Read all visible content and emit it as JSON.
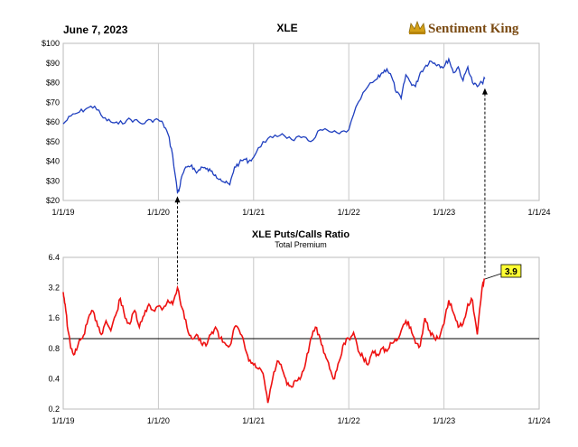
{
  "date_label": "June 7, 2023",
  "brand": {
    "name": "Sentiment King",
    "icon": "crown-icon",
    "color": "#7a4a12",
    "icon_color": "#d4a017"
  },
  "colors": {
    "price_line": "#1f3fbf",
    "ratio_line": "#ee1111",
    "callout_bg": "#ffff33",
    "reference_line": "#000000",
    "grid": "#c8c8c8"
  },
  "chart_data": [
    {
      "type": "line",
      "title": "XLE",
      "xlabel": "",
      "ylabel": "",
      "x_ticks": [
        "1/1/19",
        "1/1/20",
        "1/1/21",
        "1/1/22",
        "1/1/23",
        "1/1/24"
      ],
      "x_range": [
        2019.0,
        2024.0
      ],
      "y_ticks": [
        "$20",
        "$30",
        "$40",
        "$50",
        "$60",
        "$70",
        "$80",
        "$90",
        "$100"
      ],
      "ylim": [
        20,
        100
      ],
      "grid": "vertical",
      "series": [
        {
          "x": [
            2019.0,
            2019.08,
            2019.17,
            2019.25,
            2019.33,
            2019.42,
            2019.5,
            2019.58,
            2019.67,
            2019.75,
            2019.83,
            2019.92,
            2020.0,
            2020.05,
            2020.1,
            2020.15,
            2020.2,
            2020.22,
            2020.25,
            2020.3,
            2020.35,
            2020.4,
            2020.45,
            2020.5,
            2020.55,
            2020.6,
            2020.65,
            2020.7,
            2020.75,
            2020.8,
            2020.85,
            2020.9,
            2020.95,
            2021.0,
            2021.1,
            2021.2,
            2021.3,
            2021.4,
            2021.5,
            2021.6,
            2021.7,
            2021.8,
            2021.9,
            2022.0,
            2022.1,
            2022.2,
            2022.3,
            2022.35,
            2022.4,
            2022.45,
            2022.5,
            2022.55,
            2022.6,
            2022.65,
            2022.7,
            2022.75,
            2022.8,
            2022.85,
            2022.9,
            2022.95,
            2023.0,
            2023.05,
            2023.1,
            2023.15,
            2023.2,
            2023.25,
            2023.3,
            2023.35,
            2023.4,
            2023.43
          ],
          "values": [
            59,
            63,
            65,
            67,
            68,
            62,
            60,
            59,
            61,
            61,
            59,
            61,
            61,
            59,
            54,
            43,
            24,
            26,
            33,
            37,
            38,
            34,
            37,
            36,
            35,
            33,
            31,
            29,
            28,
            37,
            39,
            41,
            40,
            42,
            50,
            52,
            54,
            51,
            52,
            50,
            56,
            55,
            54,
            56,
            70,
            78,
            82,
            85,
            87,
            83,
            75,
            72,
            84,
            80,
            78,
            85,
            88,
            91,
            90,
            89,
            88,
            92,
            85,
            88,
            81,
            88,
            80,
            78,
            80,
            82
          ]
        }
      ]
    },
    {
      "type": "line",
      "title": "XLE Puts/Calls Ratio",
      "subtitle": "Total Premium",
      "xlabel": "",
      "ylabel": "",
      "y_scale": "log",
      "x_ticks": [
        "1/1/19",
        "1/1/20",
        "1/1/21",
        "1/1/22",
        "1/1/23",
        "1/1/24"
      ],
      "x_range": [
        2019.0,
        2024.0
      ],
      "y_ticks": [
        "0.2",
        "0.4",
        "0.8",
        "1.6",
        "3.2",
        "6.4"
      ],
      "ylim": [
        0.2,
        6.4
      ],
      "reference_line": 1.0,
      "grid": "vertical",
      "callout": {
        "value": "3.9",
        "x": 2023.43,
        "y": 3.9
      },
      "series": [
        {
          "x": [
            2019.0,
            2019.02,
            2019.05,
            2019.08,
            2019.12,
            2019.16,
            2019.2,
            2019.25,
            2019.3,
            2019.35,
            2019.4,
            2019.45,
            2019.5,
            2019.55,
            2019.6,
            2019.65,
            2019.7,
            2019.75,
            2019.8,
            2019.85,
            2019.9,
            2019.95,
            2020.0,
            2020.05,
            2020.1,
            2020.15,
            2020.2,
            2020.25,
            2020.3,
            2020.35,
            2020.4,
            2020.45,
            2020.5,
            2020.55,
            2020.6,
            2020.65,
            2020.7,
            2020.75,
            2020.8,
            2020.85,
            2020.9,
            2020.95,
            2021.0,
            2021.05,
            2021.1,
            2021.15,
            2021.2,
            2021.25,
            2021.3,
            2021.35,
            2021.4,
            2021.45,
            2021.5,
            2021.55,
            2021.6,
            2021.65,
            2021.7,
            2021.75,
            2021.8,
            2021.85,
            2021.9,
            2021.95,
            2022.0,
            2022.05,
            2022.1,
            2022.15,
            2022.2,
            2022.25,
            2022.3,
            2022.35,
            2022.4,
            2022.45,
            2022.5,
            2022.55,
            2022.6,
            2022.65,
            2022.7,
            2022.75,
            2022.8,
            2022.85,
            2022.9,
            2022.95,
            2023.0,
            2023.05,
            2023.1,
            2023.15,
            2023.2,
            2023.25,
            2023.3,
            2023.35,
            2023.4,
            2023.43
          ],
          "values": [
            2.9,
            2.2,
            1.2,
            0.8,
            0.7,
            0.9,
            1.0,
            1.4,
            1.9,
            1.5,
            1.1,
            1.5,
            1.2,
            1.7,
            2.5,
            1.6,
            1.4,
            1.9,
            1.3,
            1.7,
            2.2,
            1.9,
            2.1,
            2.0,
            2.4,
            2.2,
            3.2,
            2.0,
            1.3,
            1.0,
            1.1,
            0.9,
            0.85,
            1.1,
            1.3,
            1.0,
            0.9,
            0.85,
            1.3,
            1.2,
            0.9,
            0.6,
            0.55,
            0.5,
            0.45,
            0.23,
            0.4,
            0.6,
            0.5,
            0.35,
            0.33,
            0.38,
            0.42,
            0.6,
            1.0,
            1.3,
            1.0,
            0.7,
            0.5,
            0.4,
            0.6,
            0.9,
            1.0,
            1.15,
            0.75,
            0.65,
            0.55,
            0.75,
            0.7,
            0.8,
            0.75,
            0.9,
            0.95,
            1.2,
            1.5,
            1.3,
            0.9,
            0.85,
            1.6,
            1.2,
            1.0,
            1.0,
            1.4,
            2.4,
            1.8,
            1.3,
            1.4,
            2.2,
            2.4,
            1.1,
            3.2,
            3.9
          ]
        }
      ]
    }
  ]
}
